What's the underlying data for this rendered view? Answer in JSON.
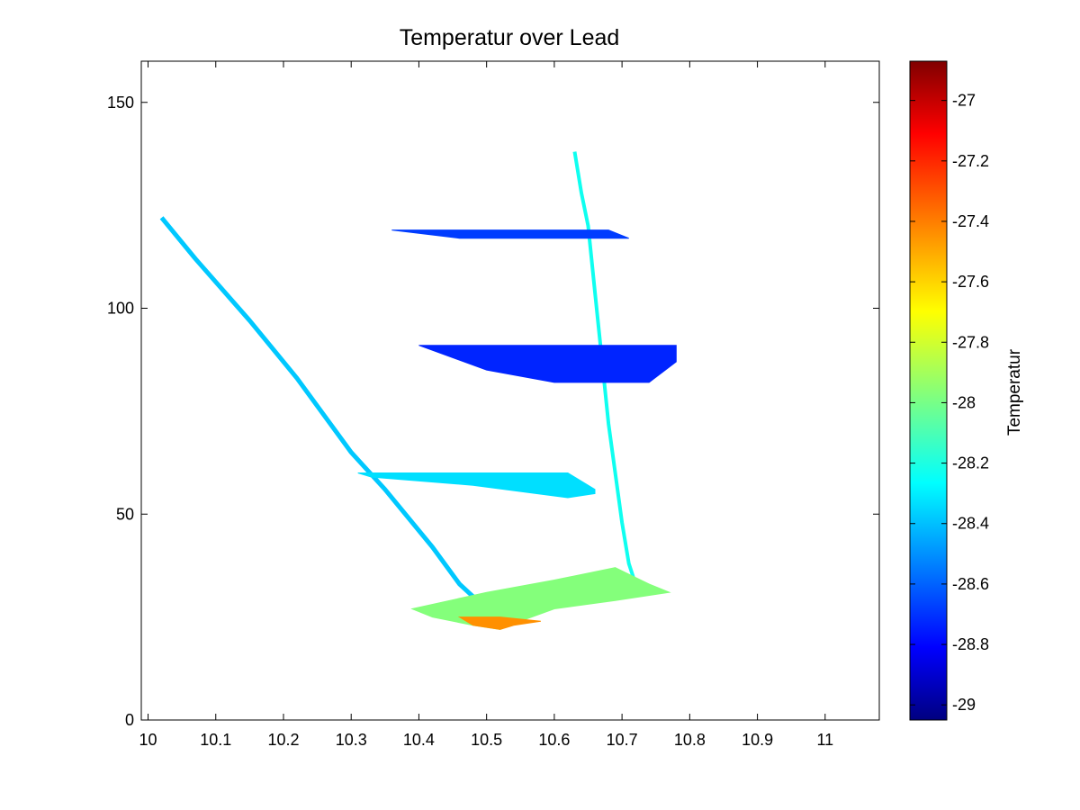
{
  "chart_data": {
    "type": "heatmap",
    "title": "Temperatur over Lead",
    "xlabel": "",
    "ylabel": "",
    "xlim": [
      9.99,
      11.08
    ],
    "ylim": [
      0,
      160
    ],
    "x_ticks": [
      10,
      10.1,
      10.2,
      10.3,
      10.4,
      10.5,
      10.6,
      10.7,
      10.8,
      10.9,
      11
    ],
    "x_tick_labels": [
      "10",
      "10.1",
      "10.2",
      "10.3",
      "10.4",
      "10.5",
      "10.6",
      "10.7",
      "10.8",
      "10.9",
      "11"
    ],
    "y_ticks": [
      0,
      50,
      100,
      150
    ],
    "y_tick_labels": [
      "0",
      "50",
      "100",
      "150"
    ],
    "grid": false,
    "colormap": "jet",
    "colorbar": {
      "label": "Temperatur",
      "range": [
        -29.05,
        -26.87
      ],
      "ticks": [
        -27,
        -27.2,
        -27.4,
        -27.6,
        -27.8,
        -28,
        -28.2,
        -28.4,
        -28.6,
        -28.8,
        -29
      ],
      "tick_labels": [
        "-27",
        "-27.2",
        "-27.4",
        "-27.6",
        "-27.8",
        "-28",
        "-28.2",
        "-28.4",
        "-28.6",
        "-28.8",
        "-29"
      ]
    },
    "regions": [
      {
        "shape": "diagonal_trace",
        "temperature": -28.35,
        "points": [
          [
            10.02,
            122
          ],
          [
            10.07,
            112
          ],
          [
            10.15,
            97
          ],
          [
            10.22,
            83
          ],
          [
            10.3,
            65
          ],
          [
            10.35,
            56
          ],
          [
            10.42,
            42
          ],
          [
            10.46,
            33
          ],
          [
            10.48,
            30
          ]
        ]
      },
      {
        "shape": "vertical_trace",
        "temperature": -28.2,
        "points": [
          [
            10.63,
            138
          ],
          [
            10.64,
            128
          ],
          [
            10.65,
            120
          ],
          [
            10.66,
            104
          ],
          [
            10.67,
            88
          ],
          [
            10.68,
            72
          ],
          [
            10.69,
            60
          ],
          [
            10.7,
            48
          ],
          [
            10.71,
            38
          ],
          [
            10.72,
            33
          ]
        ]
      },
      {
        "shape": "band",
        "temperature": -28.65,
        "polygon": [
          [
            10.36,
            119
          ],
          [
            10.68,
            119
          ],
          [
            10.71,
            117
          ],
          [
            10.46,
            117
          ]
        ]
      },
      {
        "shape": "band",
        "temperature": -28.7,
        "polygon": [
          [
            10.4,
            91
          ],
          [
            10.78,
            91
          ],
          [
            10.78,
            87
          ],
          [
            10.74,
            82
          ],
          [
            10.6,
            82
          ],
          [
            10.5,
            85
          ]
        ]
      },
      {
        "shape": "band",
        "temperature": -28.3,
        "polygon": [
          [
            10.31,
            60
          ],
          [
            10.62,
            60
          ],
          [
            10.66,
            56
          ],
          [
            10.66,
            55
          ],
          [
            10.62,
            54
          ],
          [
            10.48,
            57
          ],
          [
            10.33,
            59
          ]
        ]
      },
      {
        "shape": "blob",
        "temperature": -27.95,
        "polygon": [
          [
            10.39,
            27
          ],
          [
            10.5,
            31
          ],
          [
            10.6,
            34
          ],
          [
            10.69,
            37
          ],
          [
            10.74,
            33
          ],
          [
            10.77,
            31
          ],
          [
            10.69,
            29
          ],
          [
            10.6,
            27
          ],
          [
            10.55,
            24
          ],
          [
            10.52,
            22
          ],
          [
            10.48,
            23
          ],
          [
            10.42,
            25
          ]
        ]
      },
      {
        "shape": "hotspot",
        "temperature": -27.45,
        "polygon": [
          [
            10.46,
            25
          ],
          [
            10.52,
            25
          ],
          [
            10.58,
            24
          ],
          [
            10.54,
            23
          ],
          [
            10.52,
            22
          ],
          [
            10.48,
            23
          ]
        ]
      }
    ]
  }
}
